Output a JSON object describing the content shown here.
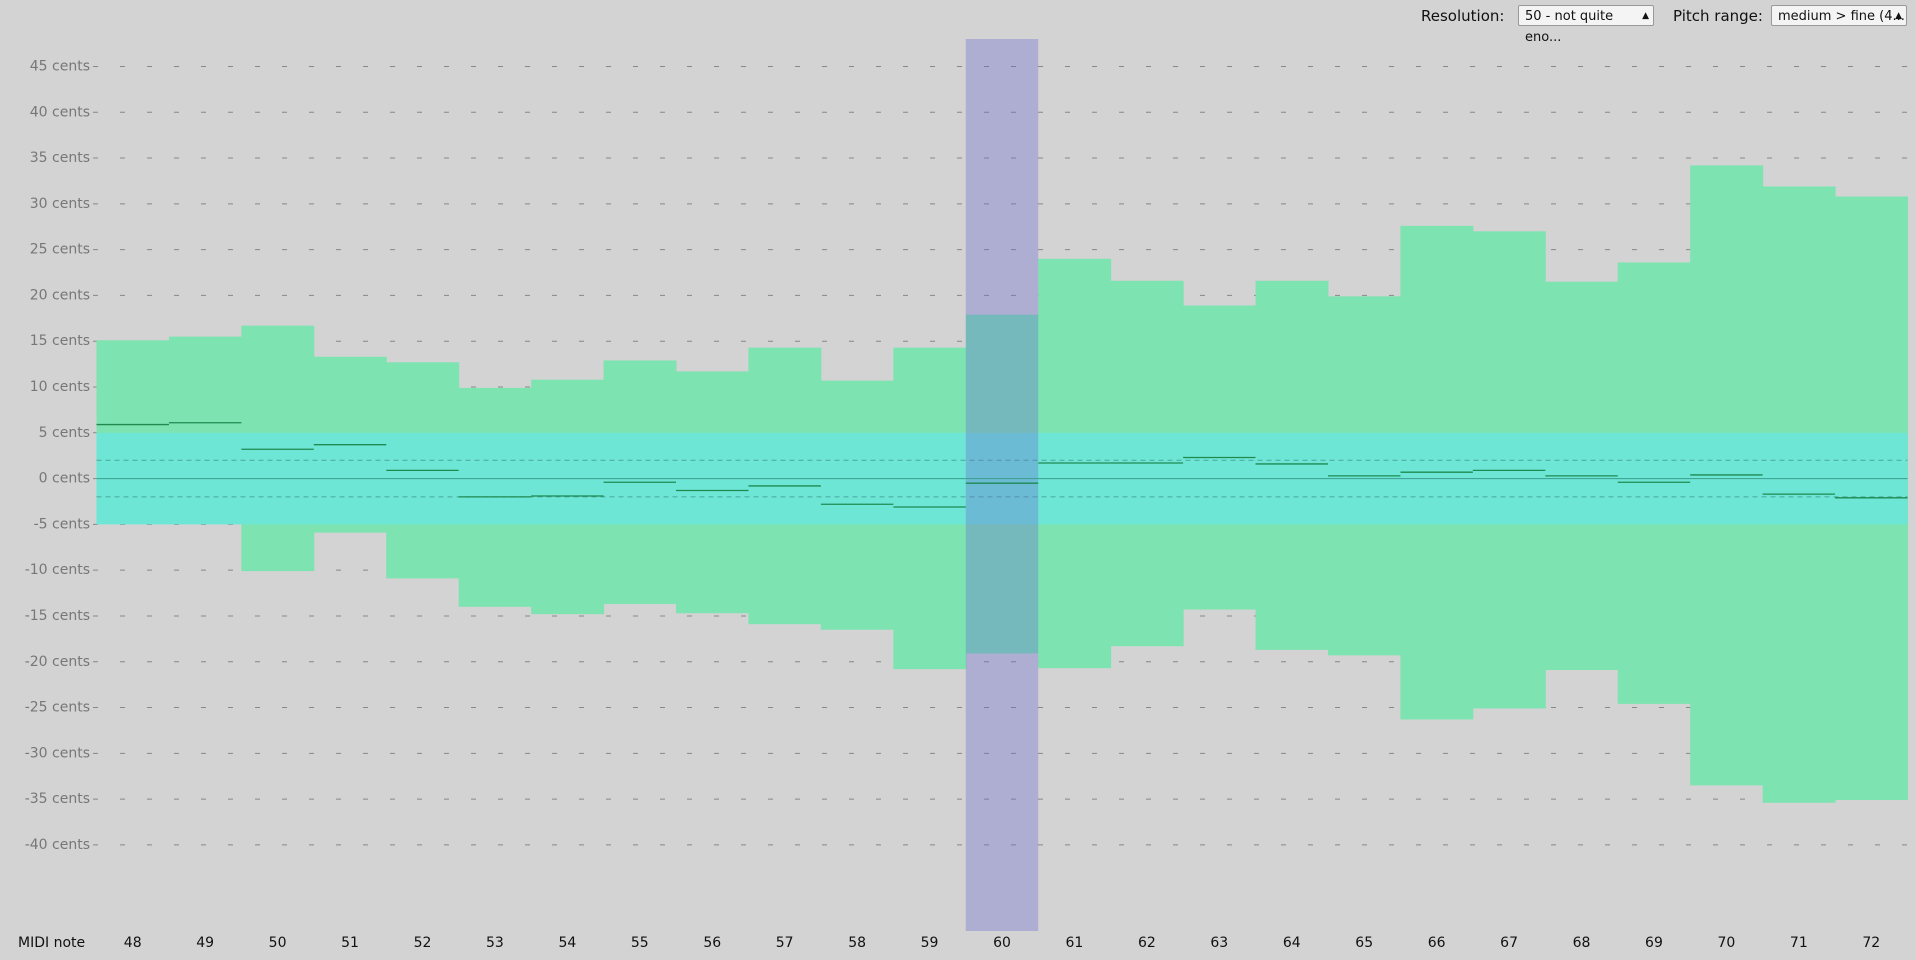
{
  "controls": {
    "resolution_label": "Resolution:",
    "resolution_value": "50 - not quite eno...",
    "pitch_label": "Pitch range:",
    "pitch_value": "medium > fine (4..."
  },
  "chart_data": {
    "type": "range-bar",
    "x_label": "MIDI note",
    "categories": [
      48,
      49,
      50,
      51,
      52,
      53,
      54,
      55,
      56,
      57,
      58,
      59,
      60,
      61,
      62,
      63,
      64,
      65,
      66,
      67,
      68,
      69,
      70,
      71,
      72
    ],
    "high": [
      15.1,
      15.5,
      16.7,
      13.3,
      12.7,
      9.9,
      10.8,
      12.9,
      11.7,
      14.3,
      10.7,
      14.3,
      17.9,
      24.0,
      21.6,
      18.9,
      21.6,
      19.9,
      27.6,
      27.0,
      21.5,
      23.6,
      34.2,
      31.9,
      30.8
    ],
    "low": [
      -3.5,
      -3.2,
      -10.1,
      -5.9,
      -10.9,
      -14.0,
      -14.8,
      -13.7,
      -14.7,
      -15.9,
      -16.5,
      -20.8,
      -19.1,
      -20.7,
      -18.3,
      -14.3,
      -18.7,
      -19.3,
      -26.3,
      -25.1,
      -20.9,
      -24.6,
      -33.5,
      -35.4,
      -35.1
    ],
    "mean": [
      5.9,
      6.1,
      3.2,
      3.7,
      0.9,
      -2.0,
      -1.9,
      -0.4,
      -1.3,
      -0.8,
      -2.8,
      -3.1,
      -0.5,
      1.7,
      1.7,
      2.3,
      1.6,
      0.3,
      0.7,
      0.9,
      0.3,
      -0.4,
      0.4,
      -1.7,
      -2.1
    ],
    "selected": 60,
    "band": [
      -5,
      5
    ],
    "guides": [
      -2,
      2
    ],
    "ylim": [
      -49.4,
      48
    ],
    "yticks": [
      {
        "value": 45,
        "label": "45 cents"
      },
      {
        "value": 40,
        "label": "40 cents"
      },
      {
        "value": 35,
        "label": "35 cents"
      },
      {
        "value": 30,
        "label": "30 cents"
      },
      {
        "value": 25,
        "label": "25 cents"
      },
      {
        "value": 20,
        "label": "20 cents"
      },
      {
        "value": 15,
        "label": "15 cents"
      },
      {
        "value": 10,
        "label": "10 cents"
      },
      {
        "value": 5,
        "label": "5 cents"
      },
      {
        "value": 0,
        "label": "0 cents"
      },
      {
        "value": -5,
        "label": "-5 cents"
      },
      {
        "value": -10,
        "label": "-10 cents"
      },
      {
        "value": -15,
        "label": "-15 cents"
      },
      {
        "value": -20,
        "label": "-20 cents"
      },
      {
        "value": -25,
        "label": "-25 cents"
      },
      {
        "value": -30,
        "label": "-30 cents"
      },
      {
        "value": -35,
        "label": "-35 cents"
      },
      {
        "value": -40,
        "label": "-40 cents"
      }
    ],
    "grid": true,
    "colors": {
      "range": "#7de3b1",
      "band": "#6ee6d6",
      "selected": "#6a6ad0",
      "mean": "#1f8a50"
    }
  }
}
